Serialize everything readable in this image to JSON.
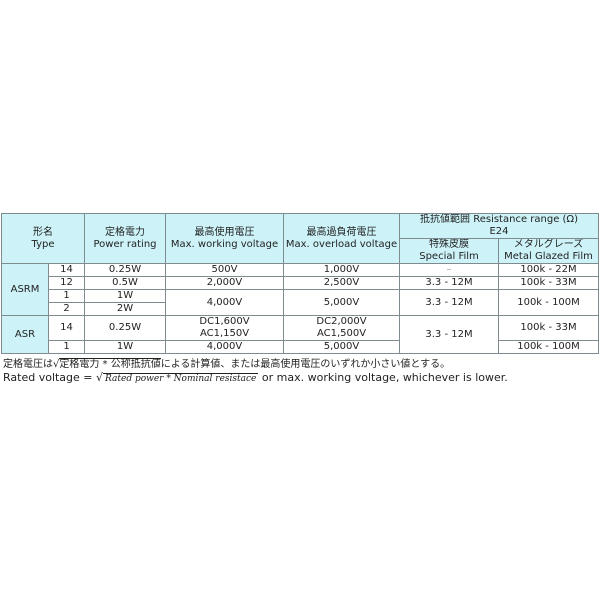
{
  "header": {
    "type_ja": "形名",
    "type_en": "Type",
    "power_ja": "定格電力",
    "power_en": "Power rating",
    "working_ja": "最高使用電圧",
    "working_en": "Max. working voltage",
    "overload_ja": "最高過負荷電圧",
    "overload_en": "Max. overload voltage",
    "resistance_ja": "抵抗値範囲 Resistance range (Ω)",
    "resistance_series": "E24",
    "special_ja": "特殊皮膜",
    "special_en": "Special Film",
    "metal_ja": "メタルグレーズ",
    "metal_en": "Metal Glazed Film"
  },
  "groups": [
    {
      "name": "ASRM",
      "rows": [
        {
          "size": "14",
          "power": "0.25W",
          "working": "500V",
          "overload": "1,000V",
          "special": "–",
          "metal": "100k - 22M"
        },
        {
          "size": "12",
          "power": "0.5W",
          "working": "2,000V",
          "overload": "2,500V",
          "special": "3.3 - 12M",
          "metal": "100k - 33M"
        },
        {
          "size": "1",
          "power": "1W",
          "working": "4,000V",
          "overload": "5,000V",
          "special": "3.3 - 12M",
          "metal": "100k - 100M"
        },
        {
          "size": "2",
          "power": "2W"
        }
      ]
    },
    {
      "name": "ASR",
      "rows": [
        {
          "size": "14",
          "power": "0.25W",
          "working_1": "DC1,600V",
          "working_2": "AC1,150V",
          "overload_1": "DC2,000V",
          "overload_2": "AC1,500V",
          "special": "3.3 - 12M",
          "metal": "100k - 33M"
        },
        {
          "size": "1",
          "power": "1W",
          "working": "4,000V",
          "overload": "5,000V",
          "metal": "100k - 100M"
        }
      ]
    }
  ],
  "notes": {
    "ja_prefix": "定格電圧は√",
    "ja_formula": "定格電力 * 公称抵抗値",
    "ja_suffix": "による計算値、または最高使用電圧のいずれか小さい値とする。",
    "en_prefix": "Rated voltage = √",
    "en_formula": "Rated power  * Nominal resistace",
    "en_suffix": " or max. working voltage, whichever is lower."
  }
}
